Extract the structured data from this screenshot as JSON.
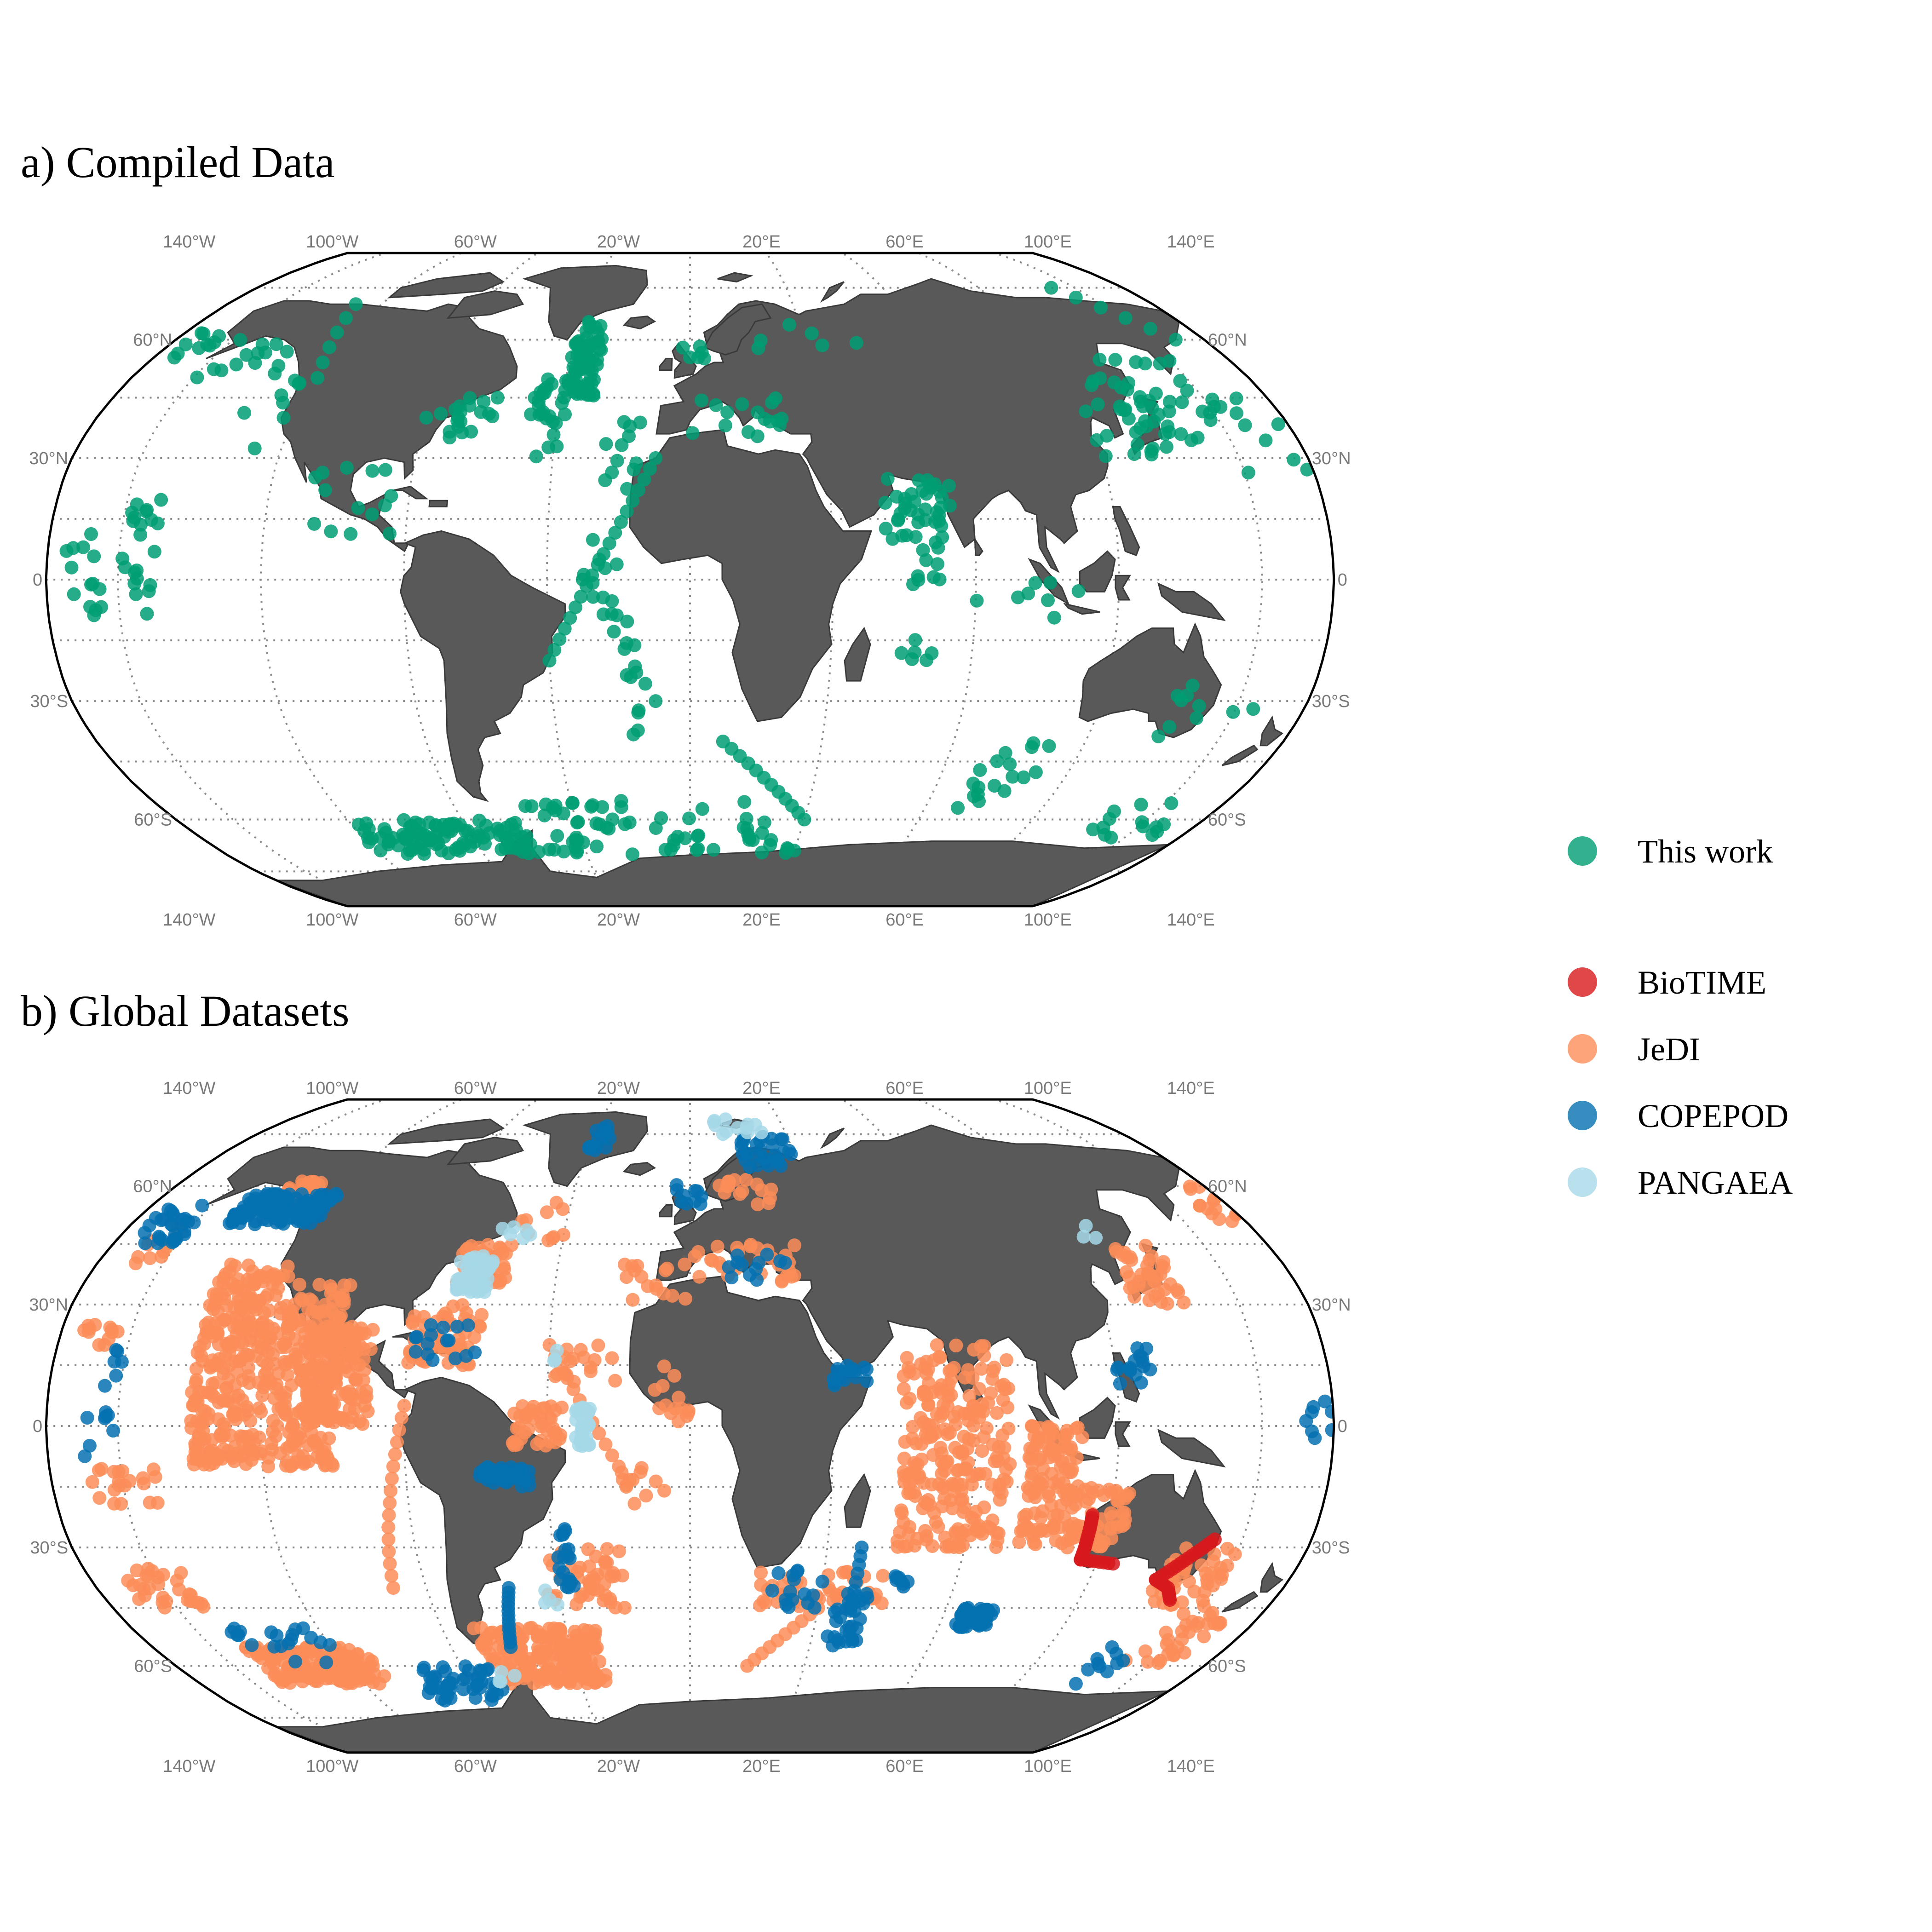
{
  "panels": [
    {
      "id": "a",
      "title": "a) Compiled Data",
      "datasets": [
        "This work"
      ]
    },
    {
      "id": "b",
      "title": "b) Global Datasets",
      "datasets": [
        "BioTIME",
        "JeDI",
        "COPEPOD",
        "PANGAEA"
      ]
    }
  ],
  "lon_ticks": [
    "140°W",
    "100°W",
    "60°W",
    "20°W",
    "20°E",
    "60°E",
    "100°E",
    "140°E"
  ],
  "lat_ticks": [
    "60°N",
    "30°N",
    "0",
    "30°S",
    "60°S"
  ],
  "legend": [
    {
      "label": "This work",
      "color": "#009E73"
    },
    {
      "label": "BioTIME",
      "color": "#D7191C"
    },
    {
      "label": "JeDI",
      "color": "#FC8D59"
    },
    {
      "label": "COPEPOD",
      "color": "#0571B0"
    },
    {
      "label": "PANGAEA",
      "color": "#A6D8E8"
    }
  ],
  "map_style": {
    "projection": "Robinson",
    "land_color": "#595959",
    "graticule": "dotted"
  }
}
